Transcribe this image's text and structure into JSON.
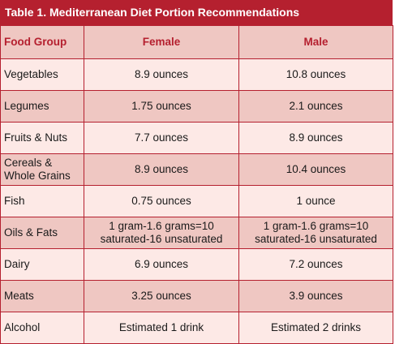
{
  "table": {
    "title": "Table 1. Mediterranean Diet Portion Recommendations",
    "headers": [
      "Food Group",
      "Female",
      "Male"
    ],
    "rows": [
      {
        "group": "Vegetables",
        "female": "8.9 ounces",
        "male": "10.8 ounces"
      },
      {
        "group": "Legumes",
        "female": "1.75 ounces",
        "male": "2.1 ounces"
      },
      {
        "group": "Fruits & Nuts",
        "female": "7.7 ounces",
        "male": "8.9 ounces"
      },
      {
        "group": "Cereals & Whole Grains",
        "female": "8.9 ounces",
        "male": "10.4 ounces"
      },
      {
        "group": "Fish",
        "female": "0.75 ounces",
        "male": "1 ounce"
      },
      {
        "group": "Oils & Fats",
        "female": "1 gram-1.6 grams=10 saturated-16 unsaturated",
        "male": "1 gram-1.6 grams=10 saturated-16 unsaturated"
      },
      {
        "group": "Dairy",
        "female": "6.9 ounces",
        "male": "7.2 ounces"
      },
      {
        "group": "Meats",
        "female": "3.25 ounces",
        "male": "3.9 ounces"
      },
      {
        "group": "Alcohol",
        "female": "Estimated 1 drink",
        "male": "Estimated 2 drinks"
      }
    ]
  }
}
